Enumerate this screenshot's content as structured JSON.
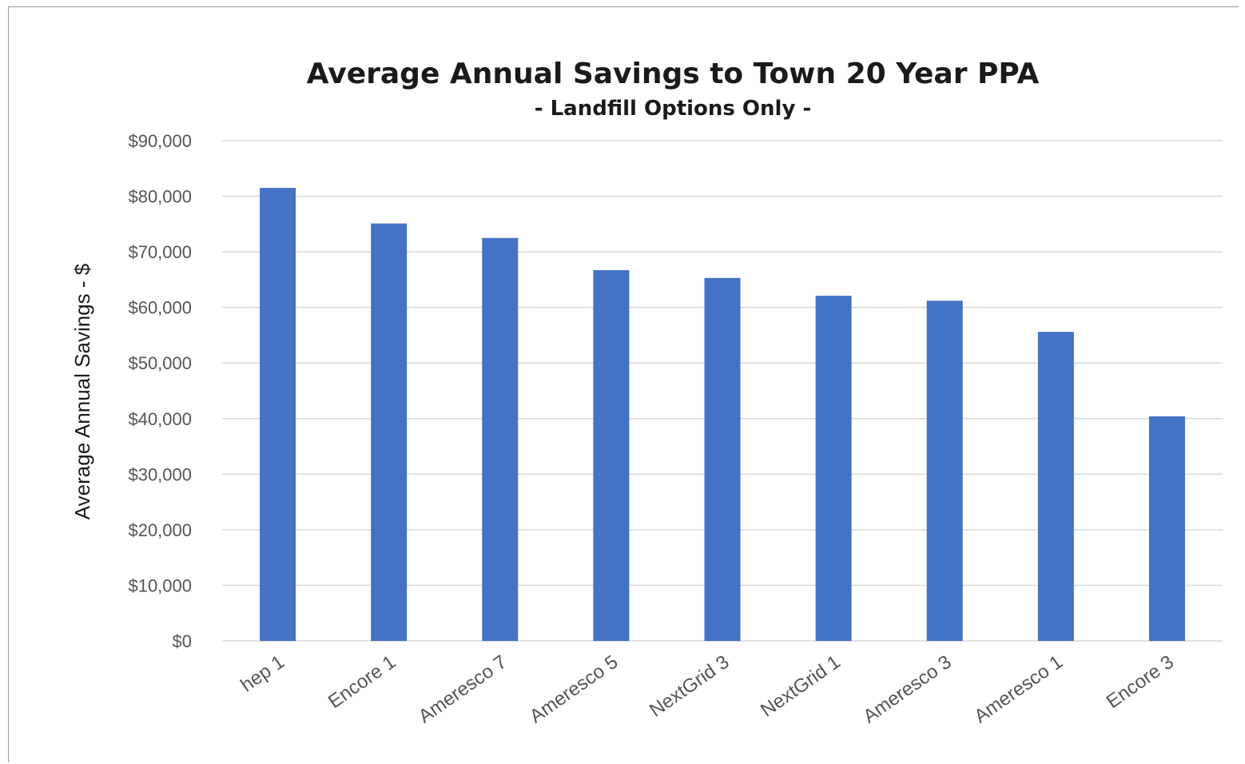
{
  "chart_data": {
    "type": "bar",
    "title": "Average Annual Savings to Town 20 Year PPA",
    "subtitle": "- Landfill Options Only -",
    "xlabel": "",
    "ylabel": "Average Annual Savings - $",
    "ylim": [
      0,
      90000
    ],
    "yticks": [
      0,
      10000,
      20000,
      30000,
      40000,
      50000,
      60000,
      70000,
      80000,
      90000
    ],
    "ytick_labels": [
      "$0",
      "$10,000",
      "$20,000",
      "$30,000",
      "$40,000",
      "$50,000",
      "$60,000",
      "$70,000",
      "$80,000",
      "$90,000"
    ],
    "categories": [
      "hep 1",
      "Encore 1",
      "Ameresco 7",
      "Ameresco 5",
      "NextGrid 3",
      "NextGrid 1",
      "Ameresco 3",
      "Ameresco 1",
      "Encore 3"
    ],
    "values": [
      81500,
      75100,
      72500,
      66700,
      65300,
      62100,
      61200,
      55600,
      40400
    ],
    "grid": true,
    "legend": "none",
    "bar_color": "#4472c4",
    "grid_color": "#d9d9d9"
  }
}
